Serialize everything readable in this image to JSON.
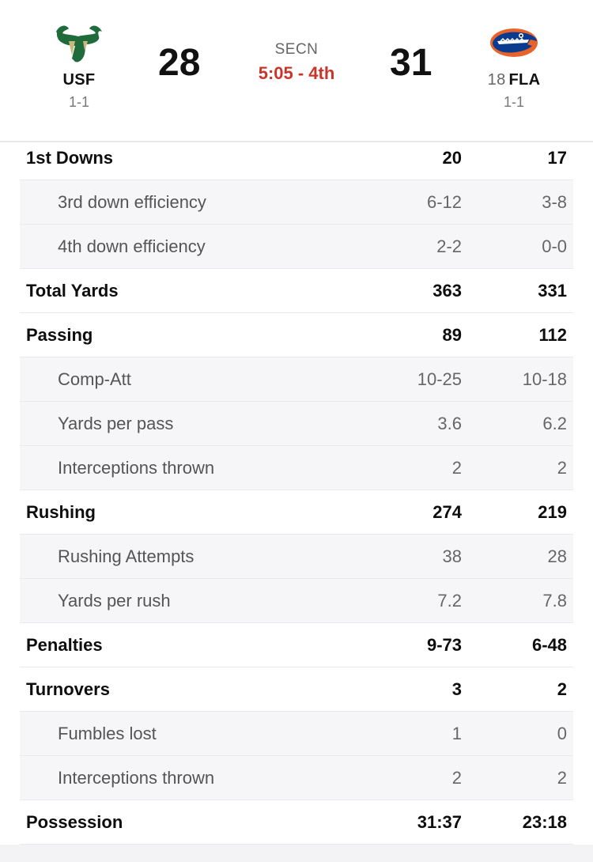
{
  "game": {
    "network": "SECN",
    "clock": "5:05 - 4th"
  },
  "away": {
    "abbr": "USF",
    "record": "1-1",
    "score": "28",
    "logo_icon": "usf-bulls-logo-icon",
    "color": "#1f6b3c"
  },
  "home": {
    "rank": "18",
    "abbr": "FLA",
    "record": "1-1",
    "score": "31",
    "logo_icon": "florida-gators-logo-icon",
    "color": "#0b3b8f"
  },
  "accent": "#c9352b",
  "stats": [
    {
      "label": "1st Downs",
      "away": "20",
      "home": "17",
      "type": "main"
    },
    {
      "label": "3rd down efficiency",
      "away": "6-12",
      "home": "3-8",
      "type": "sub"
    },
    {
      "label": "4th down efficiency",
      "away": "2-2",
      "home": "0-0",
      "type": "sub"
    },
    {
      "label": "Total Yards",
      "away": "363",
      "home": "331",
      "type": "main"
    },
    {
      "label": "Passing",
      "away": "89",
      "home": "112",
      "type": "main"
    },
    {
      "label": "Comp-Att",
      "away": "10-25",
      "home": "10-18",
      "type": "sub"
    },
    {
      "label": "Yards per pass",
      "away": "3.6",
      "home": "6.2",
      "type": "sub"
    },
    {
      "label": "Interceptions thrown",
      "away": "2",
      "home": "2",
      "type": "sub"
    },
    {
      "label": "Rushing",
      "away": "274",
      "home": "219",
      "type": "main"
    },
    {
      "label": "Rushing Attempts",
      "away": "38",
      "home": "28",
      "type": "sub"
    },
    {
      "label": "Yards per rush",
      "away": "7.2",
      "home": "7.8",
      "type": "sub"
    },
    {
      "label": "Penalties",
      "away": "9-73",
      "home": "6-48",
      "type": "main"
    },
    {
      "label": "Turnovers",
      "away": "3",
      "home": "2",
      "type": "main"
    },
    {
      "label": "Fumbles lost",
      "away": "1",
      "home": "0",
      "type": "sub"
    },
    {
      "label": "Interceptions thrown",
      "away": "2",
      "home": "2",
      "type": "sub"
    },
    {
      "label": "Possession",
      "away": "31:37",
      "home": "23:18",
      "type": "main"
    }
  ]
}
